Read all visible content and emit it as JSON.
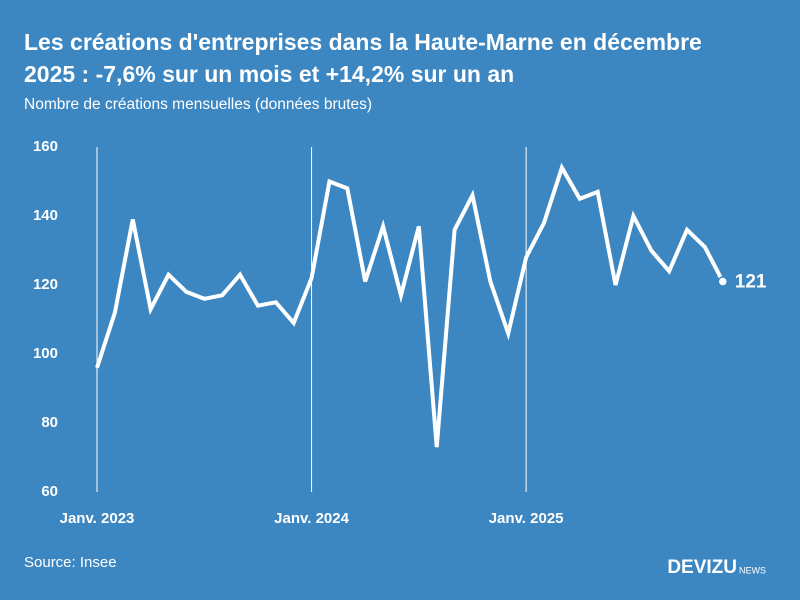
{
  "chart_data": {
    "type": "line",
    "title": "Les créations d'entreprises dans la Haute-Marne en décembre",
    "title_line2": "2025 : -7,6% sur un mois et +14,2% sur un an",
    "subtitle": "Nombre de créations mensuelles (données brutes)",
    "source": "Source: Insee",
    "brand": "DEVIZU",
    "brand_suffix": "NEWS",
    "categories": [
      "Janv. 2023",
      null,
      null,
      null,
      null,
      null,
      null,
      null,
      null,
      null,
      null,
      null,
      "Janv. 2024",
      null,
      null,
      null,
      null,
      null,
      null,
      null,
      null,
      null,
      null,
      null,
      "Janv. 2025",
      null,
      null,
      null,
      null,
      null,
      null,
      null,
      null,
      null,
      null,
      null
    ],
    "series": [
      {
        "name": "Créations",
        "color": "#ffffff",
        "values": [
          96,
          112,
          139,
          113,
          123,
          118,
          116,
          117,
          123,
          114,
          115,
          109,
          122,
          150,
          148,
          121,
          137,
          117,
          137,
          73,
          136,
          146,
          121,
          106,
          128,
          138,
          154,
          145,
          147,
          120,
          140,
          130,
          124,
          136,
          131,
          121
        ]
      }
    ],
    "ylim": [
      60,
      160
    ],
    "yticks": [
      60,
      80,
      100,
      120,
      140,
      160
    ]
  }
}
